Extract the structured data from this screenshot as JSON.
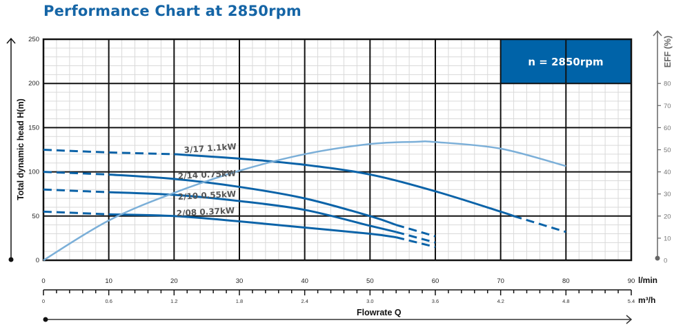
{
  "title": "Performance Chart at 2850rpm",
  "badge": {
    "text": "n = 2850rpm",
    "color": "#0063A8"
  },
  "axes": {
    "y_left_label": "Total dynamic head H(m)",
    "y_right_label": "EFF (%)",
    "x_label": "Flowrate Q",
    "x_unit_primary": "l/min",
    "x_unit_secondary": "m³/h",
    "y_left_ticks": [
      "0",
      "50",
      "100",
      "150",
      "200",
      "250"
    ],
    "y_right_ticks": [
      "0",
      "10",
      "20",
      "30",
      "40",
      "50",
      "60",
      "70",
      "80"
    ],
    "x_primary_ticks": [
      "0",
      "10",
      "20",
      "30",
      "40",
      "50",
      "60",
      "70",
      "80",
      "90"
    ],
    "x_secondary_ticks": [
      "0",
      "0.6",
      "1.2",
      "1.8",
      "2.4",
      "3.0",
      "3.6",
      "4.2",
      "4.8",
      "5.4"
    ]
  },
  "curve_labels": [
    "3/17 1.1kW",
    "2/14 0.75kW",
    "2/10 0.55kW",
    "2/08 0.37kW"
  ],
  "chart_data": {
    "type": "line",
    "title": "Performance Chart at 2850rpm",
    "xlabel": "Flowrate Q (l/min)",
    "x2label": "Flowrate Q (m³/h)",
    "ylabel": "Total dynamic head H(m)",
    "y2label": "EFF (%)",
    "xlim": [
      0,
      90
    ],
    "ylim": [
      0,
      250
    ],
    "y2lim": [
      0,
      100
    ],
    "grid": true,
    "annotation": "n = 2850rpm",
    "series": [
      {
        "name": "3/17 1.1kW",
        "axis": "head",
        "x": [
          0,
          10,
          20,
          30,
          40,
          50,
          60,
          70,
          72,
          80
        ],
        "values": [
          125,
          122,
          120,
          115,
          108,
          97,
          78,
          55,
          50,
          32
        ],
        "dashed_ranges": [
          [
            0,
            20
          ],
          [
            72,
            80
          ]
        ]
      },
      {
        "name": "2/14 0.75kW",
        "axis": "head",
        "x": [
          0,
          10,
          20,
          30,
          40,
          50,
          54,
          60
        ],
        "values": [
          100,
          97,
          92,
          83,
          70,
          50,
          40,
          27
        ],
        "dashed_ranges": [
          [
            0,
            10
          ],
          [
            54,
            60
          ]
        ]
      },
      {
        "name": "2/10 0.55kW",
        "axis": "head",
        "x": [
          0,
          10,
          20,
          30,
          40,
          50,
          54,
          60
        ],
        "values": [
          80,
          77,
          74,
          67,
          57,
          39,
          32,
          20
        ],
        "dashed_ranges": [
          [
            0,
            10
          ],
          [
            54,
            60
          ]
        ]
      },
      {
        "name": "2/08 0.37kW",
        "axis": "head",
        "x": [
          0,
          10,
          20,
          30,
          40,
          50,
          54,
          60
        ],
        "values": [
          55,
          52,
          50,
          44,
          37,
          30,
          26,
          15
        ],
        "dashed_ranges": [
          [
            0,
            10
          ],
          [
            54,
            60
          ]
        ]
      },
      {
        "name": "Efficiency",
        "axis": "eff",
        "x": [
          0,
          10,
          20,
          30,
          40,
          50,
          57,
          60,
          70,
          80
        ],
        "values": [
          0,
          18,
          30.5,
          40.5,
          48,
          52.6,
          53.6,
          53.5,
          50.5,
          42.6
        ]
      }
    ]
  },
  "colors": {
    "head_curve": "#0B63A8",
    "eff_curve": "#7BAFD8",
    "grid_major": "#111111",
    "grid_minor": "#d9d9d9",
    "eff_axis": "#666666"
  }
}
